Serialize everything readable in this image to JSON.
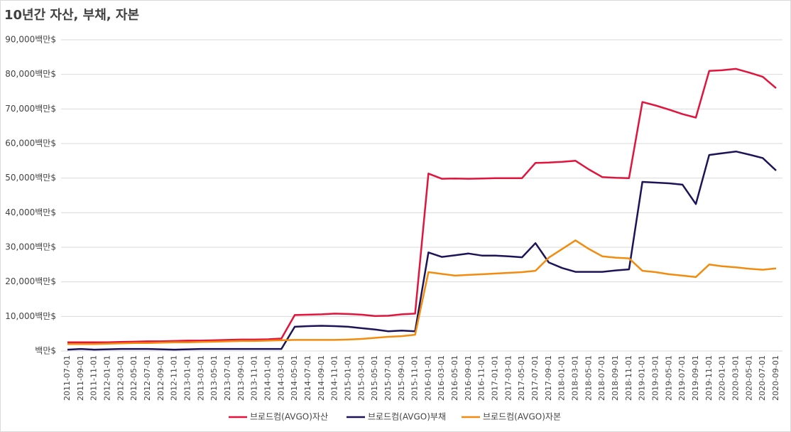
{
  "chart_data": {
    "type": "line",
    "title": "10년간 자산, 부채, 자본",
    "categories": [
      "2011-07-01",
      "2011-09-01",
      "2011-11-01",
      "2012-01-01",
      "2012-03-01",
      "2012-05-01",
      "2012-07-01",
      "2012-09-01",
      "2012-11-01",
      "2013-01-01",
      "2013-03-01",
      "2013-05-01",
      "2013-07-01",
      "2013-09-01",
      "2013-11-01",
      "2014-01-01",
      "2014-03-01",
      "2014-05-01",
      "2014-07-01",
      "2014-09-01",
      "2014-11-01",
      "2015-01-01",
      "2015-03-01",
      "2015-05-01",
      "2015-07-01",
      "2015-09-01",
      "2015-11-01",
      "2016-01-01",
      "2016-03-01",
      "2016-05-01",
      "2016-09-01",
      "2016-11-01",
      "2017-01-01",
      "2017-03-01",
      "2017-05-01",
      "2017-07-01",
      "2017-09-01",
      "2018-01-01",
      "2018-03-01",
      "2018-05-01",
      "2018-07-01",
      "2018-09-01",
      "2018-11-01",
      "2019-01-01",
      "2019-03-01",
      "2019-05-01",
      "2019-07-01",
      "2019-09-01",
      "2019-11-01",
      "2020-01-01",
      "2020-03-01",
      "2020-05-01",
      "2020-07-01",
      "2020-09-01"
    ],
    "series": [
      {
        "name": "브로드컴(AVGO)자산",
        "color": "#e0143c",
        "values": [
          2500,
          2500,
          2500,
          2500,
          2600,
          2700,
          2800,
          2800,
          2900,
          3000,
          3000,
          3100,
          3200,
          3300,
          3300,
          3400,
          3600,
          10400,
          10500,
          10600,
          10800,
          10700,
          10500,
          10100,
          10200,
          10600,
          10800,
          51300,
          49800,
          49900,
          49800,
          49900,
          50000,
          50000,
          50000,
          54400,
          54500,
          54700,
          55000,
          52500,
          50300,
          50100,
          50000,
          72000,
          71000,
          69800,
          68500,
          67500,
          81000,
          81200,
          81600,
          80500,
          79300,
          76000
        ]
      },
      {
        "name": "브로드컴(AVGO)부채",
        "color": "#1b1458",
        "values": [
          400,
          600,
          400,
          500,
          600,
          600,
          600,
          500,
          400,
          500,
          600,
          600,
          600,
          600,
          600,
          600,
          600,
          7000,
          7200,
          7300,
          7200,
          7000,
          6600,
          6200,
          5700,
          5900,
          5700,
          28500,
          27200,
          27700,
          28200,
          27600,
          27600,
          27400,
          27100,
          31200,
          25600,
          24000,
          22900,
          22900,
          22900,
          23300,
          23600,
          48900,
          48700,
          48500,
          48100,
          42500,
          56700,
          57200,
          57700,
          56800,
          55800,
          52200
        ]
      },
      {
        "name": "브로드컴(AVGO)자본",
        "color": "#f28c0f",
        "values": [
          2000,
          2000,
          2000,
          2100,
          2200,
          2300,
          2300,
          2400,
          2500,
          2500,
          2600,
          2700,
          2800,
          2900,
          2900,
          3000,
          3100,
          3200,
          3200,
          3200,
          3200,
          3300,
          3500,
          3800,
          4100,
          4300,
          4700,
          22800,
          22300,
          21800,
          22000,
          22200,
          22400,
          22600,
          22800,
          23200,
          27000,
          29500,
          32000,
          29500,
          27400,
          27000,
          26800,
          23200,
          22800,
          22200,
          21800,
          21400,
          25000,
          24500,
          24200,
          23800,
          23500,
          23900
        ]
      }
    ],
    "ylim": [
      0,
      90000
    ],
    "yticks": [
      {
        "value": 0,
        "label": "백만$"
      },
      {
        "value": 10000,
        "label": "10,000백만$"
      },
      {
        "value": 20000,
        "label": "20,000백만$"
      },
      {
        "value": 30000,
        "label": "30,000백만$"
      },
      {
        "value": 40000,
        "label": "40,000백만$"
      },
      {
        "value": 50000,
        "label": "50,000백만$"
      },
      {
        "value": 60000,
        "label": "60,000백만$"
      },
      {
        "value": 70000,
        "label": "70,000백만$"
      },
      {
        "value": 80000,
        "label": "80,000백만$"
      },
      {
        "value": 90000,
        "label": "90,000백만$"
      }
    ],
    "grid": true,
    "legend": "bottom"
  }
}
